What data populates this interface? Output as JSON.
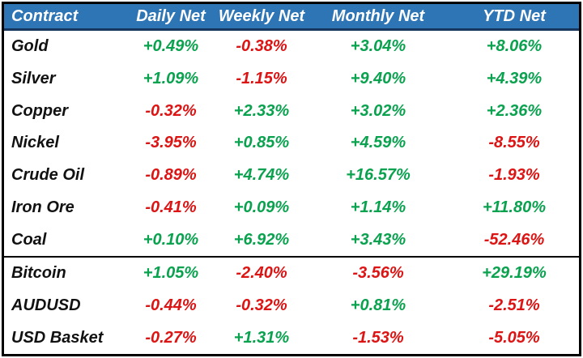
{
  "colors": {
    "header_bg": "#2E75B6",
    "header_text": "#FFFFFF",
    "header_border": "#17375E",
    "border": "#000000",
    "row_text": "#111111",
    "positive": "#0AA14F",
    "negative": "#DC1414",
    "background": "#FFFFFF"
  },
  "table": {
    "columns": [
      {
        "label": "Contract"
      },
      {
        "label": "Daily Net"
      },
      {
        "label": "Weekly Net"
      },
      {
        "label": "Monthly Net"
      },
      {
        "label": "YTD Net"
      }
    ],
    "groups": [
      {
        "rows": [
          {
            "contract": "Gold",
            "values": [
              "+0.49%",
              "-0.38%",
              "+3.04%",
              "+8.06%"
            ]
          },
          {
            "contract": "Silver",
            "values": [
              "+1.09%",
              "-1.15%",
              "+9.40%",
              "+4.39%"
            ]
          },
          {
            "contract": "Copper",
            "values": [
              "-0.32%",
              "+2.33%",
              "+3.02%",
              "+2.36%"
            ]
          },
          {
            "contract": "Nickel",
            "values": [
              "-3.95%",
              "+0.85%",
              "+4.59%",
              "-8.55%"
            ]
          },
          {
            "contract": "Crude Oil",
            "values": [
              "-0.89%",
              "+4.74%",
              "+16.57%",
              "-1.93%"
            ]
          },
          {
            "contract": "Iron Ore",
            "values": [
              "-0.41%",
              "+0.09%",
              "+1.14%",
              "+11.80%"
            ]
          },
          {
            "contract": "Coal",
            "values": [
              "+0.10%",
              "+6.92%",
              "+3.43%",
              "-52.46%"
            ]
          }
        ]
      },
      {
        "rows": [
          {
            "contract": "Bitcoin",
            "values": [
              "+1.05%",
              "-2.40%",
              "-3.56%",
              "+29.19%"
            ]
          },
          {
            "contract": "AUDUSD",
            "values": [
              "-0.44%",
              "-0.32%",
              "+0.81%",
              "-2.51%"
            ]
          },
          {
            "contract": "USD Basket",
            "values": [
              "-0.27%",
              "+1.31%",
              "-1.53%",
              "-5.05%"
            ]
          }
        ]
      }
    ]
  },
  "chart_data": {
    "type": "table",
    "columns": [
      "Contract",
      "Daily Net",
      "Weekly Net",
      "Monthly Net",
      "YTD Net"
    ],
    "rows": [
      [
        "Gold",
        "+0.49%",
        "-0.38%",
        "+3.04%",
        "+8.06%"
      ],
      [
        "Silver",
        "+1.09%",
        "-1.15%",
        "+9.40%",
        "+4.39%"
      ],
      [
        "Copper",
        "-0.32%",
        "+2.33%",
        "+3.02%",
        "+2.36%"
      ],
      [
        "Nickel",
        "-3.95%",
        "+0.85%",
        "+4.59%",
        "-8.55%"
      ],
      [
        "Crude Oil",
        "-0.89%",
        "+4.74%",
        "+16.57%",
        "-1.93%"
      ],
      [
        "Iron Ore",
        "-0.41%",
        "+0.09%",
        "+1.14%",
        "+11.80%"
      ],
      [
        "Coal",
        "+0.10%",
        "+6.92%",
        "+3.43%",
        "-52.46%"
      ],
      [
        "Bitcoin",
        "+1.05%",
        "-2.40%",
        "-3.56%",
        "+29.19%"
      ],
      [
        "AUDUSD",
        "-0.44%",
        "-0.32%",
        "+0.81%",
        "-2.51%"
      ],
      [
        "USD Basket",
        "-0.27%",
        "+1.31%",
        "-1.53%",
        "-5.05%"
      ]
    ],
    "group_break_after_row": "Coal",
    "value_color_rule": "plus-sign=green, minus-sign=red",
    "layout": "header row blue with white bold-italic text; thick black outer border; heavy divider between commodity and macro groups"
  }
}
